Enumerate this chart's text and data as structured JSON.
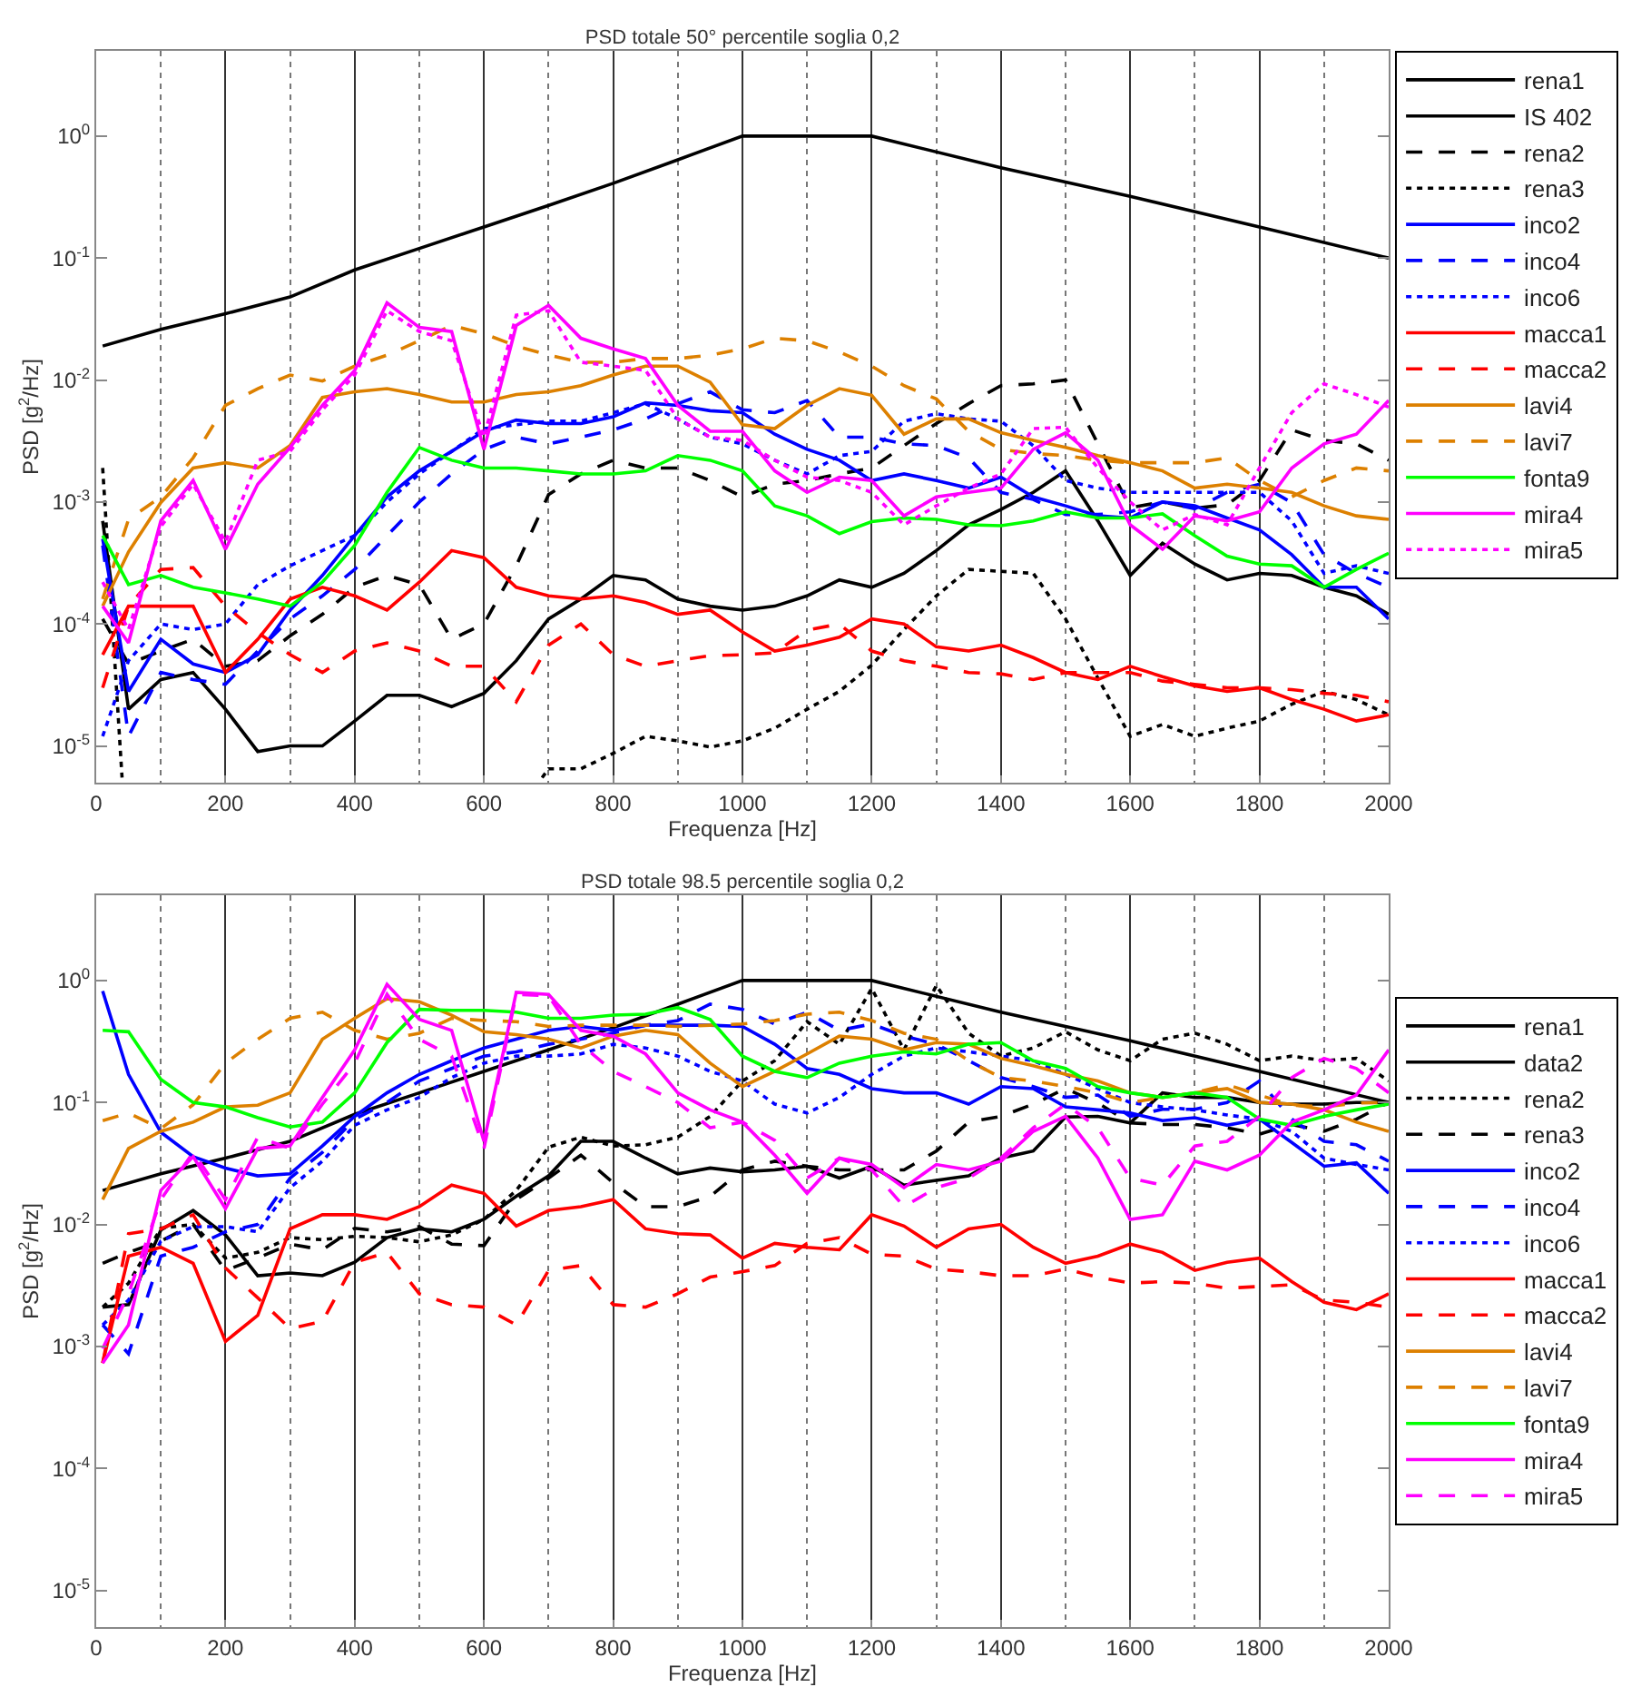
{
  "chart_data": [
    {
      "type": "line",
      "title": "PSD totale 50° percentile soglia 0,2",
      "xlabel": "Frequenza [Hz]",
      "ylabel": "PSD [g$^{2}$/Hz]",
      "log": "y",
      "grid": "x",
      "legend": "top right",
      "xlim": [
        0,
        2000
      ],
      "xticks": [
        0,
        200,
        400,
        600,
        800,
        1000,
        1200,
        1400,
        1600,
        1800,
        2000
      ],
      "ylim": [
        5e-06,
        5
      ],
      "yticks": [
        {
          "value": 1e-05,
          "label": "10$^{-5}$"
        },
        {
          "value": 0.0001,
          "label": "10$^{-4}$"
        },
        {
          "value": 0.001,
          "label": "10$^{-3}$"
        },
        {
          "value": 0.01,
          "label": "10$^{-2}$"
        },
        {
          "value": 0.1,
          "label": "10$^{-1}$"
        },
        {
          "value": 1,
          "label": "10$^{0}$"
        }
      ],
      "x": [
        10,
        50,
        100,
        150,
        200,
        250,
        300,
        350,
        400,
        450,
        500,
        550,
        600,
        650,
        700,
        750,
        800,
        850,
        900,
        950,
        1000,
        1050,
        1100,
        1150,
        1200,
        1250,
        1300,
        1350,
        1400,
        1450,
        1500,
        1550,
        1600,
        1650,
        1700,
        1750,
        1800,
        1850,
        1900,
        1950,
        2000
      ],
      "series": [
        {
          "name": "rena1",
          "color": "#000000",
          "line_style": "solid",
          "values": [
            0.0007,
            2e-05,
            3.5e-05,
            4e-05,
            2e-05,
            9e-06,
            1e-05,
            1e-05,
            1.6e-05,
            2.6e-05,
            2.6e-05,
            2.1e-05,
            2.7e-05,
            5e-05,
            0.00011,
            0.00016,
            0.00025,
            0.00023,
            0.00016,
            0.00014,
            0.00013,
            0.00014,
            0.00017,
            0.00023,
            0.0002,
            0.00026,
            0.0004,
            0.00065,
            0.00087,
            0.0012,
            0.0018,
            0.0007,
            0.00025,
            0.00046,
            0.00031,
            0.00023,
            0.00026,
            0.00025,
            0.0002,
            0.00017,
            0.00012
          ]
        },
        {
          "name": "IS 402",
          "color": "#000000",
          "line_style": "solid",
          "x": [
            10,
            100,
            200,
            300,
            400,
            500,
            600,
            700,
            800,
            900,
            1000,
            1200,
            1400,
            1600,
            1800,
            2000
          ],
          "values": [
            0.019,
            0.026,
            0.035,
            0.048,
            0.08,
            0.12,
            0.18,
            0.27,
            0.41,
            0.64,
            1,
            1,
            0.55,
            0.32,
            0.18,
            0.1
          ]
        },
        {
          "name": "rena2",
          "color": "#000000",
          "line_style": "dashed",
          "values": [
            0.00011,
            4.7e-05,
            6e-05,
            7.5e-05,
            4.5e-05,
            5e-05,
            8e-05,
            0.00012,
            0.0002,
            0.00025,
            0.00021,
            7.5e-05,
            0.0001,
            0.0003,
            0.00115,
            0.0017,
            0.0022,
            0.0019,
            0.0019,
            0.0015,
            0.0011,
            0.0014,
            0.0015,
            0.0017,
            0.0019,
            0.0029,
            0.0044,
            0.0064,
            0.009,
            0.0093,
            0.01,
            0.003,
            0.0009,
            0.001,
            0.00089,
            0.00095,
            0.0015,
            0.0039,
            0.0032,
            0.003,
            0.0022
          ]
        },
        {
          "name": "rena3",
          "color": "#000000",
          "line_style": "dotted",
          "x": [
            10,
            40,
            400,
            690,
            700,
            750,
            800,
            850,
            900,
            950,
            1000,
            1050,
            1100,
            1150,
            1200,
            1250,
            1300,
            1350,
            1400,
            1450,
            1500,
            1550,
            1600,
            1650,
            1700,
            1750,
            1800,
            1850,
            1900,
            1950,
            2000
          ],
          "values": [
            0.0019,
            5.5e-06,
            null,
            5.5e-06,
            6.5e-06,
            6.5e-06,
            8.7e-06,
            1.2e-05,
            1.1e-05,
            9.8e-06,
            1.1e-05,
            1.4e-05,
            2e-05,
            2.8e-05,
            4.6e-05,
            9e-05,
            0.00017,
            0.00028,
            0.00027,
            0.00026,
            0.00011,
            3.6e-05,
            1.2e-05,
            1.5e-05,
            1.2e-05,
            1.4e-05,
            1.6e-05,
            2.2e-05,
            2.8e-05,
            2.4e-05,
            1.8e-05
          ]
        },
        {
          "name": "inco2",
          "color": "#0000ff",
          "line_style": "solid",
          "values": [
            0.0005,
            2.8e-05,
            7.5e-05,
            4.7e-05,
            4e-05,
            5.6e-05,
            0.00013,
            0.00025,
            0.00053,
            0.0011,
            0.0018,
            0.0026,
            0.0038,
            0.0047,
            0.0044,
            0.0044,
            0.005,
            0.0065,
            0.0062,
            0.0056,
            0.0054,
            0.0036,
            0.0027,
            0.0022,
            0.0015,
            0.0017,
            0.0015,
            0.0013,
            0.0016,
            0.0011,
            0.00093,
            0.00077,
            0.00074,
            0.001,
            0.00093,
            0.00074,
            0.00059,
            0.00037,
            0.0002,
            0.0002,
            0.00011
          ]
        },
        {
          "name": "inco4",
          "color": "#0000ff",
          "line_style": "dashed",
          "values": [
            0.00044,
            1.2e-05,
            4e-05,
            3.5e-05,
            3.2e-05,
            6e-05,
            0.00011,
            0.00017,
            0.00028,
            0.00053,
            0.001,
            0.0017,
            0.0027,
            0.0034,
            0.003,
            0.0034,
            0.0039,
            0.0048,
            0.0064,
            0.008,
            0.0057,
            0.0054,
            0.0068,
            0.0034,
            0.0034,
            0.003,
            0.0029,
            0.0023,
            0.0012,
            0.00105,
            0.00079,
            0.00079,
            0.00083,
            0.001,
            0.00088,
            0.0012,
            0.0014,
            0.00099,
            0.00037,
            0.00026,
            0.0002
          ]
        },
        {
          "name": "inco6",
          "color": "#0000ff",
          "line_style": "dotted",
          "values": [
            1.2e-05,
            5e-05,
            0.0001,
            9e-05,
            0.0001,
            0.00021,
            0.0003,
            0.0004,
            0.00053,
            0.001,
            0.0017,
            0.0026,
            0.004,
            0.0043,
            0.0046,
            0.0046,
            0.0054,
            0.0064,
            0.0048,
            0.0034,
            0.003,
            0.0022,
            0.0017,
            0.0024,
            0.0026,
            0.0046,
            0.0053,
            0.0048,
            0.0046,
            0.0029,
            0.0015,
            0.0013,
            0.0012,
            0.0012,
            0.0012,
            0.0012,
            0.0012,
            0.0007,
            0.00026,
            0.0003,
            0.00026
          ]
        },
        {
          "name": "macca1",
          "color": "#ff0000",
          "line_style": "solid",
          "values": [
            5.6e-05,
            0.00014,
            0.00014,
            0.00014,
            4e-05,
            7.5e-05,
            0.00016,
            0.0002,
            0.00017,
            0.00013,
            0.00022,
            0.0004,
            0.00035,
            0.0002,
            0.00017,
            0.00016,
            0.00017,
            0.00015,
            0.00012,
            0.00013,
            8.6e-05,
            6e-05,
            6.7e-05,
            7.8e-05,
            0.00011,
            0.0001,
            6.5e-05,
            6e-05,
            6.7e-05,
            5.3e-05,
            4e-05,
            3.5e-05,
            4.5e-05,
            3.7e-05,
            3.1e-05,
            2.8e-05,
            3e-05,
            2.4e-05,
            2e-05,
            1.6e-05,
            1.8e-05
          ]
        },
        {
          "name": "macca2",
          "color": "#ff0000",
          "line_style": "dashed",
          "values": [
            3e-05,
            0.00014,
            0.00028,
            0.00029,
            0.00014,
            8.5e-05,
            5.6e-05,
            4e-05,
            6e-05,
            7e-05,
            6e-05,
            4.5e-05,
            4.5e-05,
            2.3e-05,
            6.7e-05,
            0.0001,
            5.6e-05,
            4.5e-05,
            5e-05,
            5.5e-05,
            5.6e-05,
            5.8e-05,
            8.9e-05,
            0.0001,
            6e-05,
            5e-05,
            4.5e-05,
            4e-05,
            3.9e-05,
            3.5e-05,
            4e-05,
            4e-05,
            4e-05,
            3.4e-05,
            3.2e-05,
            3e-05,
            3e-05,
            2.9e-05,
            2.7e-05,
            2.6e-05,
            2.3e-05
          ]
        },
        {
          "name": "lavi4",
          "color": "#dd8000",
          "line_style": "solid",
          "values": [
            0.00014,
            0.00039,
            0.00099,
            0.0019,
            0.0021,
            0.0019,
            0.0029,
            0.0072,
            0.008,
            0.0085,
            0.0076,
            0.0066,
            0.0066,
            0.0076,
            0.008,
            0.009,
            0.011,
            0.013,
            0.013,
            0.0096,
            0.0043,
            0.004,
            0.0062,
            0.0085,
            0.0075,
            0.0036,
            0.0048,
            0.0048,
            0.0037,
            0.0032,
            0.0028,
            0.0024,
            0.0021,
            0.0018,
            0.0013,
            0.0014,
            0.0013,
            0.0012,
            0.00093,
            0.00077,
            0.00072
          ]
        },
        {
          "name": "lavi7",
          "color": "#dd8000",
          "line_style": "dashed",
          "values": [
            0.00016,
            0.00072,
            0.0011,
            0.0023,
            0.0062,
            0.0085,
            0.011,
            0.0098,
            0.013,
            0.016,
            0.021,
            0.028,
            0.024,
            0.019,
            0.016,
            0.014,
            0.014,
            0.015,
            0.015,
            0.016,
            0.018,
            0.022,
            0.021,
            0.017,
            0.013,
            0.009,
            0.007,
            0.0038,
            0.0027,
            0.0025,
            0.0024,
            0.0022,
            0.0021,
            0.0021,
            0.0021,
            0.0023,
            0.0015,
            0.0011,
            0.0015,
            0.0019,
            0.0018
          ]
        },
        {
          "name": "fonta9",
          "color": "#00ff00",
          "line_style": "solid",
          "values": [
            0.00053,
            0.00021,
            0.00025,
            0.0002,
            0.00018,
            0.00016,
            0.00014,
            0.00022,
            0.00044,
            0.0012,
            0.0028,
            0.0022,
            0.0019,
            0.0019,
            0.0018,
            0.0017,
            0.0017,
            0.0018,
            0.0024,
            0.0022,
            0.0018,
            0.00093,
            0.00077,
            0.00055,
            0.00069,
            0.00074,
            0.00072,
            0.00065,
            0.00064,
            0.0007,
            0.00083,
            0.00074,
            0.00074,
            0.0008,
            0.00053,
            0.00036,
            0.00031,
            0.0003,
            0.0002,
            0.00028,
            0.00038
          ]
        },
        {
          "name": "mira4",
          "color": "#ff00ff",
          "line_style": "solid",
          "values": [
            0.00014,
            7e-05,
            0.0007,
            0.0015,
            0.00041,
            0.0014,
            0.0028,
            0.0062,
            0.012,
            0.043,
            0.027,
            0.025,
            0.0027,
            0.028,
            0.041,
            0.022,
            0.018,
            0.015,
            0.0062,
            0.0038,
            0.0038,
            0.0018,
            0.0012,
            0.0016,
            0.0015,
            0.00077,
            0.0011,
            0.0012,
            0.0013,
            0.0027,
            0.0037,
            0.0022,
            0.00065,
            0.00041,
            0.00077,
            0.0007,
            0.00083,
            0.0019,
            0.003,
            0.0036,
            0.0068
          ]
        },
        {
          "name": "mira5",
          "color": "#ff00ff",
          "line_style": "dotted",
          "values": [
            0.00022,
            9e-05,
            0.00063,
            0.0014,
            0.00047,
            0.0022,
            0.0026,
            0.0057,
            0.011,
            0.037,
            0.025,
            0.021,
            0.0034,
            0.034,
            0.037,
            0.014,
            0.013,
            0.012,
            0.0048,
            0.0034,
            0.0032,
            0.0022,
            0.0016,
            0.0015,
            0.0012,
            0.00065,
            0.00093,
            0.0013,
            0.0017,
            0.004,
            0.0041,
            0.0019,
            0.001,
            0.00059,
            0.00079,
            0.00065,
            0.0019,
            0.0054,
            0.0093,
            0.0076,
            0.006
          ]
        }
      ]
    },
    {
      "type": "line",
      "title": "PSD totale 98.5 percentile soglia 0,2",
      "xlabel": "Frequenza [Hz]",
      "ylabel": "PSD [g$^{2}$/Hz]",
      "log": "y",
      "grid": "x",
      "legend": "right",
      "xlim": [
        0,
        2000
      ],
      "xticks": [
        0,
        200,
        400,
        600,
        800,
        1000,
        1200,
        1400,
        1600,
        1800,
        2000
      ],
      "ylim": [
        5e-06,
        5
      ],
      "yticks": [
        {
          "value": 1e-05,
          "label": "10$^{-5}$"
        },
        {
          "value": 0.0001,
          "label": "10$^{-4}$"
        },
        {
          "value": 0.001,
          "label": "10$^{-3}$"
        },
        {
          "value": 0.01,
          "label": "10$^{-2}$"
        },
        {
          "value": 0.1,
          "label": "10$^{-1}$"
        },
        {
          "value": 1,
          "label": "10$^{0}$"
        }
      ],
      "x": [
        10,
        50,
        100,
        150,
        200,
        250,
        300,
        350,
        400,
        450,
        500,
        550,
        600,
        650,
        700,
        750,
        800,
        850,
        900,
        950,
        1000,
        1050,
        1100,
        1150,
        1200,
        1250,
        1300,
        1350,
        1400,
        1450,
        1500,
        1550,
        1600,
        1650,
        1700,
        1750,
        1800,
        1850,
        1900,
        1950,
        2000
      ],
      "series": [
        {
          "name": "rena1",
          "color": "#000000",
          "line_style": "solid",
          "values": [
            0.0021,
            0.0022,
            0.009,
            0.013,
            0.0082,
            0.0038,
            0.004,
            0.0038,
            0.0049,
            0.0078,
            0.0092,
            0.0087,
            0.011,
            0.017,
            0.025,
            0.048,
            0.048,
            0.035,
            0.026,
            0.029,
            0.027,
            0.028,
            0.03,
            0.024,
            0.03,
            0.021,
            0.023,
            0.025,
            0.035,
            0.04,
            0.076,
            0.077,
            0.068,
            0.12,
            0.11,
            0.11,
            0.1,
            0.097,
            0.097,
            0.1,
            0.1
          ]
        },
        {
          "name": "data2",
          "color": "#000000",
          "line_style": "solid",
          "x": [
            10,
            100,
            200,
            300,
            400,
            500,
            600,
            700,
            800,
            900,
            1000,
            1200,
            1400,
            1600,
            1800,
            2000
          ],
          "values": [
            0.019,
            0.026,
            0.035,
            0.048,
            0.08,
            0.12,
            0.18,
            0.27,
            0.41,
            0.64,
            1,
            1,
            0.55,
            0.32,
            0.18,
            0.1
          ]
        },
        {
          "name": "rena2",
          "color": "#000000",
          "line_style": "dotted",
          "values": [
            0.0021,
            0.0033,
            0.0093,
            0.01,
            0.0053,
            0.0059,
            0.0078,
            0.0075,
            0.008,
            0.0078,
            0.0072,
            0.0082,
            0.011,
            0.019,
            0.043,
            0.052,
            0.044,
            0.045,
            0.052,
            0.077,
            0.15,
            0.22,
            0.46,
            0.3,
            0.86,
            0.27,
            0.91,
            0.37,
            0.24,
            0.28,
            0.38,
            0.27,
            0.22,
            0.33,
            0.37,
            0.3,
            0.22,
            0.24,
            0.22,
            0.23,
            0.15
          ]
        },
        {
          "name": "rena3",
          "color": "#000000",
          "line_style": "dashed",
          "values": [
            0.0048,
            0.0059,
            0.0073,
            0.01,
            0.0042,
            0.0053,
            0.0069,
            0.0062,
            0.0093,
            0.0087,
            0.0096,
            0.0069,
            0.0067,
            0.016,
            0.024,
            0.037,
            0.022,
            0.014,
            0.014,
            0.017,
            0.028,
            0.033,
            0.03,
            0.028,
            0.028,
            0.028,
            0.04,
            0.069,
            0.077,
            0.097,
            0.13,
            0.099,
            0.068,
            0.066,
            0.066,
            0.062,
            0.055,
            0.066,
            0.058,
            0.073,
            0.1
          ]
        },
        {
          "name": "inco2",
          "color": "#0000ff",
          "line_style": "solid",
          "values": [
            0.82,
            0.17,
            0.057,
            0.036,
            0.029,
            0.025,
            0.026,
            0.044,
            0.077,
            0.12,
            0.17,
            0.22,
            0.28,
            0.33,
            0.39,
            0.42,
            0.39,
            0.43,
            0.43,
            0.43,
            0.42,
            0.3,
            0.19,
            0.17,
            0.13,
            0.12,
            0.12,
            0.097,
            0.135,
            0.13,
            0.092,
            0.087,
            0.082,
            0.071,
            0.075,
            0.065,
            0.073,
            0.047,
            0.03,
            0.032,
            0.018
          ]
        },
        {
          "name": "inco4",
          "color": "#0000ff",
          "line_style": "dashed",
          "values": [
            0.0015,
            0.00087,
            0.0055,
            0.0065,
            0.0087,
            0.01,
            0.024,
            0.039,
            0.073,
            0.1,
            0.15,
            0.19,
            0.24,
            0.26,
            0.3,
            0.33,
            0.37,
            0.43,
            0.47,
            0.64,
            0.58,
            0.44,
            0.55,
            0.39,
            0.44,
            0.35,
            0.3,
            0.22,
            0.16,
            0.135,
            0.11,
            0.115,
            0.077,
            0.088,
            0.088,
            0.1,
            0.15,
            0.073,
            0.048,
            0.045,
            0.033
          ]
        },
        {
          "name": "inco6",
          "color": "#0000ff",
          "line_style": "dotted",
          "values": [
            0.0015,
            0.0024,
            0.0073,
            0.0096,
            0.0096,
            0.0087,
            0.02,
            0.033,
            0.065,
            0.087,
            0.11,
            0.16,
            0.21,
            0.24,
            0.24,
            0.25,
            0.3,
            0.28,
            0.24,
            0.18,
            0.15,
            0.097,
            0.082,
            0.11,
            0.17,
            0.24,
            0.28,
            0.26,
            0.24,
            0.22,
            0.17,
            0.13,
            0.1,
            0.092,
            0.087,
            0.079,
            0.073,
            0.058,
            0.035,
            0.031,
            0.028
          ]
        },
        {
          "name": "macca1",
          "color": "#ff0000",
          "line_style": "solid",
          "values": [
            0.00073,
            0.0055,
            0.0065,
            0.0048,
            0.0011,
            0.0018,
            0.0092,
            0.012,
            0.012,
            0.011,
            0.014,
            0.021,
            0.018,
            0.0097,
            0.013,
            0.014,
            0.016,
            0.0092,
            0.0084,
            0.0082,
            0.0053,
            0.007,
            0.0065,
            0.0062,
            0.012,
            0.0097,
            0.0065,
            0.0092,
            0.01,
            0.0065,
            0.0048,
            0.0055,
            0.0069,
            0.0059,
            0.0042,
            0.0049,
            0.0053,
            0.0034,
            0.0023,
            0.002,
            0.0027
          ]
        },
        {
          "name": "macca2",
          "color": "#ff0000",
          "line_style": "dashed",
          "values": [
            0.00073,
            0.0084,
            0.0092,
            0.012,
            0.0044,
            0.0025,
            0.0014,
            0.0016,
            0.0049,
            0.0059,
            0.0027,
            0.0022,
            0.0021,
            0.0015,
            0.0042,
            0.0046,
            0.0022,
            0.0021,
            0.0027,
            0.0037,
            0.0041,
            0.0046,
            0.007,
            0.0078,
            0.0057,
            0.0055,
            0.0043,
            0.0041,
            0.0038,
            0.0038,
            0.0043,
            0.0037,
            0.0033,
            0.0034,
            0.0033,
            0.003,
            0.0031,
            0.0032,
            0.0024,
            0.0023,
            0.0021
          ]
        },
        {
          "name": "lavi4",
          "color": "#dd8000",
          "line_style": "solid",
          "values": [
            0.016,
            0.042,
            0.058,
            0.069,
            0.092,
            0.095,
            0.12,
            0.33,
            0.49,
            0.71,
            0.67,
            0.52,
            0.38,
            0.36,
            0.33,
            0.28,
            0.35,
            0.39,
            0.36,
            0.21,
            0.135,
            0.18,
            0.25,
            0.35,
            0.33,
            0.27,
            0.31,
            0.3,
            0.23,
            0.2,
            0.17,
            0.15,
            0.12,
            0.11,
            0.12,
            0.13,
            0.1,
            0.097,
            0.087,
            0.069,
            0.058
          ]
        },
        {
          "name": "lavi7",
          "color": "#dd8000",
          "line_style": "dashed",
          "values": [
            0.071,
            0.082,
            0.061,
            0.096,
            0.21,
            0.33,
            0.49,
            0.55,
            0.39,
            0.33,
            0.37,
            0.49,
            0.47,
            0.46,
            0.42,
            0.43,
            0.43,
            0.43,
            0.42,
            0.43,
            0.44,
            0.47,
            0.53,
            0.55,
            0.47,
            0.37,
            0.33,
            0.22,
            0.16,
            0.15,
            0.135,
            0.12,
            0.1,
            0.11,
            0.12,
            0.14,
            0.115,
            0.095,
            0.092,
            0.099,
            0.1
          ]
        },
        {
          "name": "fonta9",
          "color": "#00ff00",
          "line_style": "solid",
          "values": [
            0.39,
            0.38,
            0.155,
            0.1,
            0.092,
            0.075,
            0.063,
            0.069,
            0.12,
            0.31,
            0.58,
            0.57,
            0.57,
            0.55,
            0.49,
            0.49,
            0.52,
            0.53,
            0.6,
            0.48,
            0.24,
            0.18,
            0.16,
            0.21,
            0.24,
            0.26,
            0.25,
            0.3,
            0.31,
            0.22,
            0.19,
            0.135,
            0.12,
            0.11,
            0.12,
            0.11,
            0.073,
            0.065,
            0.077,
            0.087,
            0.097
          ]
        },
        {
          "name": "mira4",
          "color": "#ff00ff",
          "line_style": "solid",
          "values": [
            0.00073,
            0.0015,
            0.019,
            0.036,
            0.0135,
            0.042,
            0.044,
            0.11,
            0.27,
            0.93,
            0.48,
            0.39,
            0.048,
            0.8,
            0.77,
            0.39,
            0.35,
            0.25,
            0.12,
            0.087,
            0.069,
            0.037,
            0.018,
            0.035,
            0.031,
            0.02,
            0.031,
            0.028,
            0.033,
            0.058,
            0.077,
            0.035,
            0.011,
            0.012,
            0.033,
            0.028,
            0.037,
            0.069,
            0.087,
            0.115,
            0.27
          ]
        },
        {
          "name": "mira5",
          "color": "#ff00ff",
          "line_style": "dashed",
          "values": [
            0.00096,
            0.0027,
            0.016,
            0.039,
            0.016,
            0.052,
            0.042,
            0.097,
            0.21,
            0.77,
            0.33,
            0.24,
            0.042,
            0.77,
            0.75,
            0.3,
            0.18,
            0.135,
            0.1,
            0.062,
            0.069,
            0.049,
            0.024,
            0.035,
            0.028,
            0.014,
            0.02,
            0.024,
            0.035,
            0.062,
            0.097,
            0.062,
            0.024,
            0.021,
            0.044,
            0.048,
            0.077,
            0.16,
            0.23,
            0.19,
            0.12
          ]
        }
      ]
    }
  ]
}
